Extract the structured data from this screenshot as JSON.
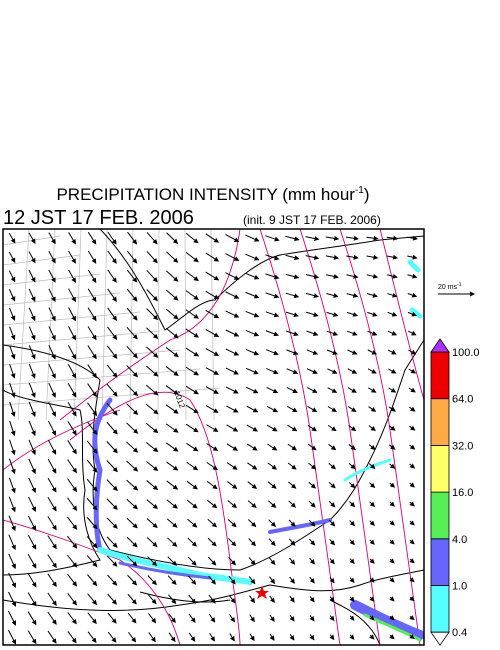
{
  "header": {
    "title": "PRECIPITATION INTENSITY (mm hour",
    "title_superscript": "-1",
    "title_close": ")",
    "valid_time": "12 JST 17 FEB. 2006",
    "init_time": "(init. 9 JST 17 FEB. 2006)"
  },
  "map": {
    "isobar_label": "1012"
  },
  "vector_legend": {
    "text": "20 ms",
    "superscript": "-1"
  },
  "colorbar": {
    "labels": [
      "0.4",
      "1.0",
      "4.0",
      "16.0",
      "32.0",
      "64.0",
      "100.0"
    ],
    "colors": [
      "#55ffff",
      "#6666ff",
      "#55ee55",
      "#ffff66",
      "#ffaa44",
      "#ee0000"
    ],
    "under_color": "#ffffff",
    "over_color": "#aa33ff"
  }
}
